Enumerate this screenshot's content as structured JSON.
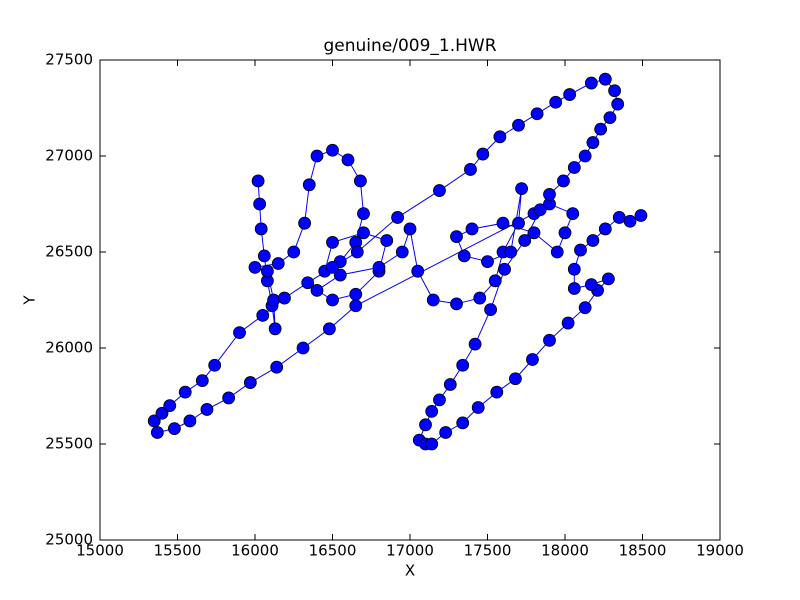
{
  "chart_data": {
    "type": "line",
    "title": "genuine/009_1.HWR",
    "xlabel": "X",
    "ylabel": "Y",
    "color": "#0000ff",
    "marker_color": "#0000ff",
    "xlim": [
      15000,
      19000
    ],
    "ylim": [
      25000,
      27500
    ],
    "xticks": [
      15000,
      15500,
      16000,
      16500,
      17000,
      17500,
      18000,
      18500,
      19000
    ],
    "yticks": [
      25000,
      25500,
      26000,
      26500,
      27000,
      27500
    ],
    "x": [
      16020,
      16030,
      16040,
      16060,
      16080,
      16110,
      16130,
      16120,
      16080,
      16000,
      16150,
      16250,
      16320,
      16350,
      16400,
      16500,
      16600,
      16680,
      16700,
      16650,
      16550,
      16450,
      16500,
      16700,
      16850,
      16800,
      16650,
      16500,
      16400,
      16550,
      16800,
      16950,
      17000,
      17050,
      17150,
      17300,
      17450,
      17550,
      17600,
      17700,
      17720,
      17650,
      17500,
      17350,
      17300,
      17400,
      17600,
      17800,
      17950,
      18000,
      18050,
      17900,
      17800,
      16650,
      16480,
      16310,
      16140,
      15970,
      15830,
      15690,
      15580,
      15480,
      15370,
      15350,
      15400,
      15450,
      15550,
      15660,
      15740,
      15900,
      16050,
      16190,
      16340,
      16500,
      16660,
      16920,
      17190,
      17390,
      17470,
      17580,
      17700,
      17820,
      17940,
      18030,
      18170,
      18260,
      18320,
      18340,
      18290,
      18230,
      18180,
      18130,
      18060,
      17990,
      17900,
      17840,
      17740,
      17610,
      17520,
      17420,
      17340,
      17260,
      17190,
      17140,
      17100,
      17060,
      17100,
      17140,
      17230,
      17340,
      17440,
      17560,
      17680,
      17790,
      17900,
      18020,
      18130,
      18210,
      18280,
      18170,
      18060,
      18060,
      18100,
      18180,
      18260,
      18350,
      18420,
      18490
    ],
    "values": [
      26870,
      26750,
      26620,
      26480,
      26350,
      26220,
      26100,
      26250,
      26400,
      26420,
      26440,
      26500,
      26650,
      26850,
      27000,
      27030,
      26980,
      26870,
      26700,
      26550,
      26450,
      26400,
      26550,
      26600,
      26560,
      26400,
      26280,
      26250,
      26300,
      26380,
      26420,
      26500,
      26620,
      26400,
      26250,
      26230,
      26260,
      26350,
      26500,
      26650,
      26830,
      26500,
      26450,
      26480,
      26580,
      26620,
      26650,
      26600,
      26500,
      26600,
      26700,
      26750,
      26700,
      26220,
      26100,
      26000,
      25900,
      25820,
      25740,
      25680,
      25620,
      25580,
      25560,
      25620,
      25660,
      25700,
      25770,
      25830,
      25910,
      26080,
      26170,
      26260,
      26340,
      26420,
      26500,
      26680,
      26820,
      26930,
      27010,
      27100,
      27160,
      27220,
      27280,
      27320,
      27380,
      27400,
      27340,
      27270,
      27200,
      27140,
      27070,
      27000,
      26940,
      26870,
      26800,
      26720,
      26560,
      26410,
      26200,
      26020,
      25910,
      25810,
      25730,
      25670,
      25600,
      25520,
      25500,
      25500,
      25560,
      25610,
      25690,
      25770,
      25840,
      25940,
      26040,
      26130,
      26210,
      26300,
      26360,
      26330,
      26310,
      26410,
      26510,
      26560,
      26620,
      26680,
      26660,
      26690
    ]
  }
}
